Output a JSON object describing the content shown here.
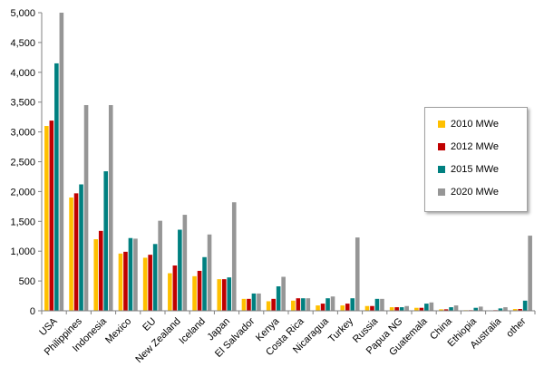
{
  "chart_data": {
    "type": "bar",
    "title": "",
    "xlabel": "",
    "ylabel": "",
    "ylim": [
      0,
      5000
    ],
    "yticks": [
      "0",
      "500",
      "1,000",
      "1,500",
      "2,000",
      "2,500",
      "3,000",
      "3,500",
      "4,000",
      "4,500",
      "5,000"
    ],
    "grid": false,
    "legend_position": "right",
    "categories": [
      "USA",
      "Philippines",
      "Indonesia",
      "Mexico",
      "EU",
      "New Zealand",
      "Iceland",
      "Japan",
      "El Salvador",
      "Kenya",
      "Costa Rica",
      "Nicaragua",
      "Turkey",
      "Russia",
      "Papua NG",
      "Guatemala",
      "China",
      "Ethiopia",
      "Australia",
      "other"
    ],
    "series": [
      {
        "name": "2010 MWe",
        "color": "#ffc000",
        "values": [
          3100,
          1900,
          1200,
          960,
          890,
          630,
          580,
          530,
          200,
          160,
          170,
          90,
          90,
          80,
          60,
          50,
          25,
          10,
          5,
          30
        ]
      },
      {
        "name": "2012 MWe",
        "color": "#c00000",
        "values": [
          3190,
          1970,
          1340,
          990,
          940,
          760,
          670,
          530,
          200,
          200,
          210,
          120,
          120,
          80,
          60,
          50,
          25,
          10,
          10,
          30
        ]
      },
      {
        "name": "2015 MWe",
        "color": "#008080",
        "values": [
          4150,
          2120,
          2340,
          1220,
          1120,
          1360,
          900,
          560,
          290,
          410,
          210,
          210,
          210,
          200,
          60,
          120,
          60,
          50,
          40,
          170
        ]
      },
      {
        "name": "2020 MWe",
        "color": "#969696",
        "values": [
          5000,
          3450,
          3450,
          1210,
          1510,
          1610,
          1280,
          1820,
          290,
          570,
          210,
          240,
          1230,
          200,
          80,
          140,
          90,
          70,
          60,
          1260
        ]
      }
    ]
  }
}
